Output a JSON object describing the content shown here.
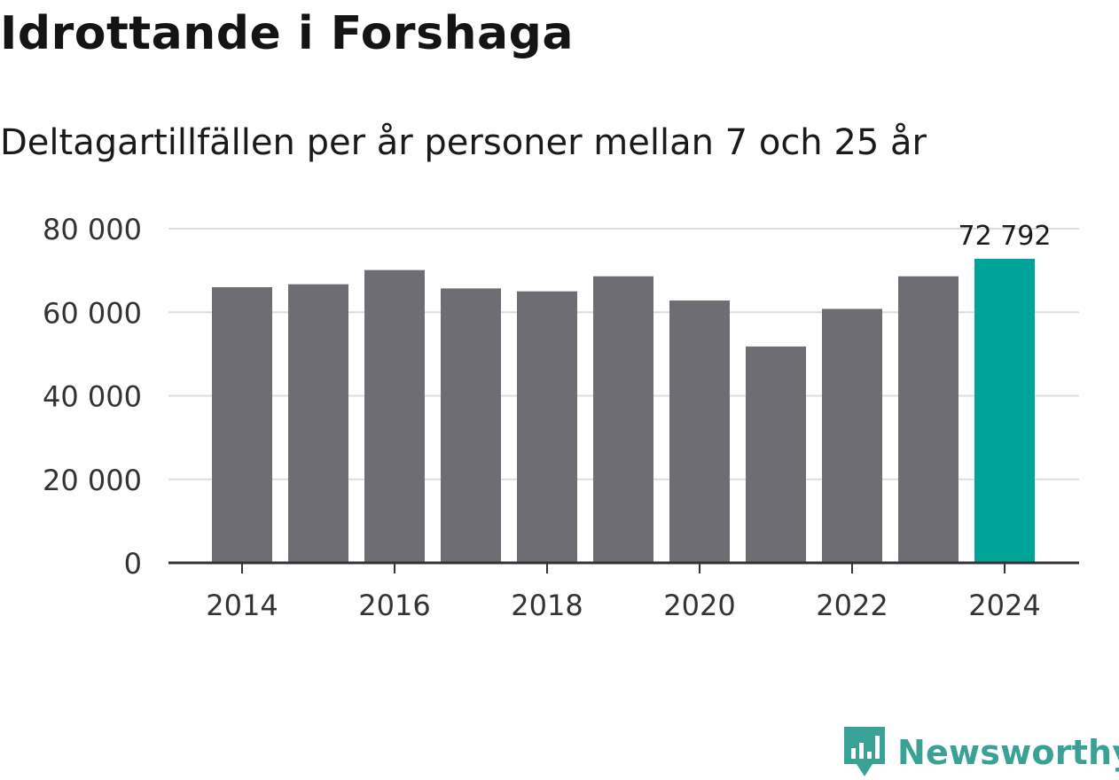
{
  "header": {
    "title": "Idrottande i Forshaga",
    "subtitle": "Deltagartillfällen per år personer mellan 7 och 25 år"
  },
  "chart_data": {
    "type": "bar",
    "title": "Idrottande i Forshaga",
    "subtitle": "Deltagartillfällen per år personer mellan 7 och 25 år",
    "xlabel": "",
    "ylabel": "",
    "categories": [
      "2014",
      "2015",
      "2016",
      "2017",
      "2018",
      "2019",
      "2020",
      "2021",
      "2022",
      "2023",
      "2024"
    ],
    "values": [
      66000,
      66700,
      70100,
      65700,
      65000,
      68600,
      62800,
      51800,
      60800,
      68600,
      72792
    ],
    "ylim": [
      0,
      80000
    ],
    "yticks": [
      0,
      20000,
      40000,
      60000,
      80000
    ],
    "ytick_labels": [
      "0",
      "20 000",
      "40 000",
      "60 000",
      "80 000"
    ],
    "xtick_labels": [
      "2014",
      "2016",
      "2018",
      "2020",
      "2022",
      "2024"
    ],
    "highlight_index": 10,
    "highlight_label": "72 792",
    "grid": true,
    "colors": {
      "bar": "#6e6d73",
      "highlight": "#00a398",
      "grid": "#dddddd",
      "axis": "#333333",
      "tick_text": "#333333"
    }
  },
  "footer": {
    "brand": "Newsworthy",
    "brand_color": "#3aa197",
    "icon": "newsworthy-logo-icon"
  }
}
